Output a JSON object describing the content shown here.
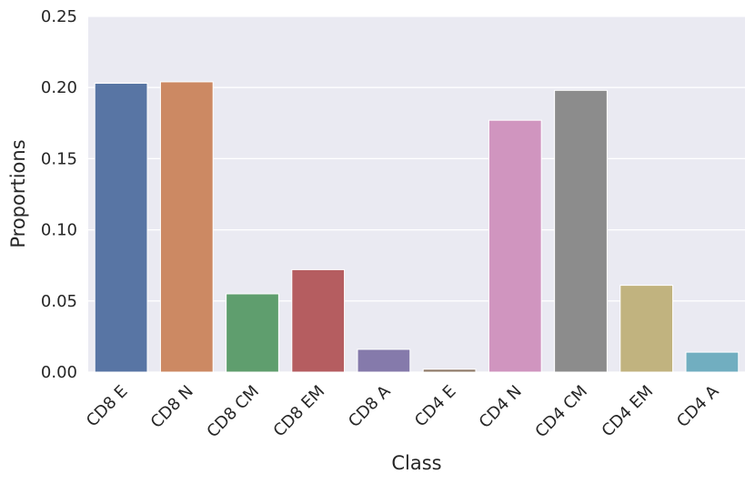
{
  "chart_data": {
    "type": "bar",
    "categories": [
      "CD8 E",
      "CD8 N",
      "CD8 CM",
      "CD8 EM",
      "CD8 A",
      "CD4 E",
      "CD4 N",
      "CD4 CM",
      "CD4 EM",
      "CD4 A"
    ],
    "values": [
      0.203,
      0.204,
      0.055,
      0.072,
      0.016,
      0.002,
      0.177,
      0.198,
      0.061,
      0.014
    ],
    "colors": [
      "#5875a4",
      "#cc8963",
      "#5f9e6e",
      "#b55d60",
      "#857aab",
      "#8d7866",
      "#d095bf",
      "#8c8c8c",
      "#c1b37f",
      "#71aec0"
    ],
    "xlabel": "Class",
    "ylabel": "Proportions",
    "ylim": [
      0,
      0.25
    ],
    "yticks": [
      "0.00",
      "0.05",
      "0.10",
      "0.15",
      "0.20",
      "0.25"
    ],
    "grid": true,
    "background_color": "#eaeaf2"
  }
}
